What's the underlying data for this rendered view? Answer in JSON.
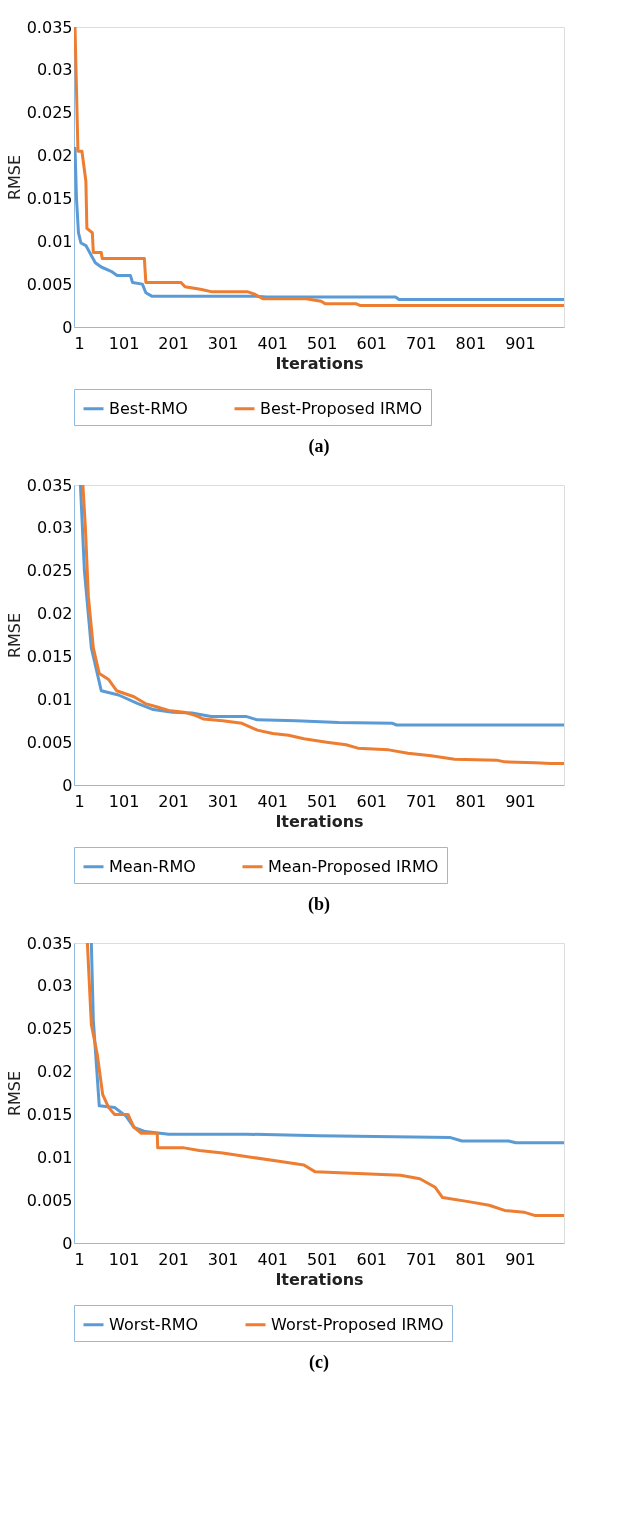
{
  "chart_data": [
    {
      "type": "line",
      "title": "(a)",
      "xlabel": "Iterations",
      "ylabel": "RMSE",
      "xlim": [
        1,
        990
      ],
      "xticks": [
        1,
        101,
        201,
        301,
        401,
        501,
        601,
        701,
        801,
        901
      ],
      "ylim": [
        0,
        0.035
      ],
      "yticks": [
        0,
        0.005,
        0.01,
        0.015,
        0.02,
        0.025,
        0.03,
        0.035
      ],
      "grid": false,
      "legend": "bottom",
      "series": [
        {
          "name": "Best-RMO",
          "color": "#5b9bd5",
          "x": [
            3,
            6,
            10,
            15,
            25,
            44,
            56,
            76,
            88,
            115,
            119,
            139,
            146,
            158,
            367,
            390,
            650,
            657,
            990
          ],
          "values": [
            0.021,
            0.015,
            0.011,
            0.0098,
            0.0095,
            0.0075,
            0.007,
            0.0065,
            0.006,
            0.006,
            0.0052,
            0.005,
            0.004,
            0.0036,
            0.0036,
            0.0035,
            0.0035,
            0.0032,
            0.0032
          ]
        },
        {
          "name": "Best-Proposed IRMO",
          "color": "#ed7d31",
          "x": [
            1,
            3,
            9,
            17,
            25,
            27,
            38,
            40,
            56,
            58,
            143,
            146,
            217,
            225,
            256,
            280,
            352,
            367,
            382,
            469,
            500,
            508,
            571,
            579,
            990
          ],
          "values": [
            0.035,
            0.035,
            0.0205,
            0.0205,
            0.017,
            0.0115,
            0.011,
            0.0087,
            0.0087,
            0.008,
            0.008,
            0.0052,
            0.0052,
            0.0047,
            0.0044,
            0.0041,
            0.0041,
            0.0038,
            0.0033,
            0.0033,
            0.003,
            0.0027,
            0.0027,
            0.0025,
            0.0025
          ]
        }
      ]
    },
    {
      "type": "line",
      "title": "(b)",
      "xlabel": "Iterations",
      "ylabel": "RMSE",
      "xlim": [
        1,
        990
      ],
      "xticks": [
        1,
        101,
        201,
        301,
        401,
        501,
        601,
        701,
        801,
        901
      ],
      "ylim": [
        0,
        0.035
      ],
      "yticks": [
        0,
        0.005,
        0.01,
        0.015,
        0.02,
        0.025,
        0.03,
        0.035
      ],
      "grid": false,
      "legend": "bottom",
      "series": [
        {
          "name": "Mean-RMO",
          "color": "#5b9bd5",
          "x": [
            14,
            22,
            36,
            56,
            91,
            130,
            161,
            200,
            239,
            278,
            348,
            371,
            449,
            535,
            644,
            652,
            990
          ],
          "values": [
            0.035,
            0.025,
            0.016,
            0.011,
            0.0105,
            0.0095,
            0.0088,
            0.0085,
            0.0084,
            0.008,
            0.008,
            0.0076,
            0.0075,
            0.0073,
            0.0072,
            0.007,
            0.007
          ]
        },
        {
          "name": "Mean-Proposed IRMO",
          "color": "#ed7d31",
          "x": [
            19,
            24,
            30,
            40,
            52,
            71,
            87,
            122,
            145,
            169,
            192,
            223,
            247,
            262,
            301,
            340,
            371,
            402,
            434,
            465,
            511,
            550,
            574,
            636,
            675,
            722,
            769,
            854,
            870,
            932,
            963,
            990
          ],
          "values": [
            0.035,
            0.03,
            0.022,
            0.016,
            0.013,
            0.0123,
            0.011,
            0.0103,
            0.0095,
            0.0091,
            0.0087,
            0.0085,
            0.0081,
            0.0077,
            0.0075,
            0.0072,
            0.0064,
            0.006,
            0.0058,
            0.0054,
            0.005,
            0.0047,
            0.0043,
            0.0041,
            0.0037,
            0.0034,
            0.003,
            0.0029,
            0.0027,
            0.0026,
            0.0025,
            0.0025
          ]
        }
      ]
    },
    {
      "type": "line",
      "title": "(c)",
      "xlabel": "Iterations",
      "ylabel": "RMSE",
      "xlim": [
        1,
        990
      ],
      "xticks": [
        1,
        101,
        201,
        301,
        401,
        501,
        601,
        701,
        801,
        901
      ],
      "ylim": [
        0,
        0.035
      ],
      "yticks": [
        0,
        0.005,
        0.01,
        0.015,
        0.02,
        0.025,
        0.03,
        0.035
      ],
      "grid": false,
      "legend": "bottom",
      "series": [
        {
          "name": "Worst-RMO",
          "color": "#5b9bd5",
          "x": [
            36,
            40,
            52,
            83,
            106,
            122,
            145,
            192,
            348,
            496,
            761,
            784,
            878,
            893,
            990
          ],
          "values": [
            0.035,
            0.026,
            0.016,
            0.0158,
            0.0148,
            0.0135,
            0.013,
            0.0127,
            0.0127,
            0.0125,
            0.0123,
            0.0119,
            0.0119,
            0.0117,
            0.0117
          ]
        },
        {
          "name": "Worst-Proposed IRMO",
          "color": "#ed7d31",
          "x": [
            28,
            36,
            48,
            59,
            71,
            83,
            110,
            122,
            137,
            169,
            170,
            223,
            254,
            301,
            348,
            418,
            465,
            488,
            660,
            699,
            730,
            745,
            800,
            839,
            870,
            909,
            932,
            990
          ],
          "values": [
            0.035,
            0.0255,
            0.022,
            0.0173,
            0.0158,
            0.015,
            0.015,
            0.0135,
            0.0128,
            0.0128,
            0.0111,
            0.0111,
            0.0108,
            0.0105,
            0.0101,
            0.0095,
            0.0091,
            0.0083,
            0.0079,
            0.0075,
            0.0065,
            0.0053,
            0.0048,
            0.0044,
            0.0038,
            0.0036,
            0.0032,
            0.0032
          ]
        }
      ]
    }
  ]
}
